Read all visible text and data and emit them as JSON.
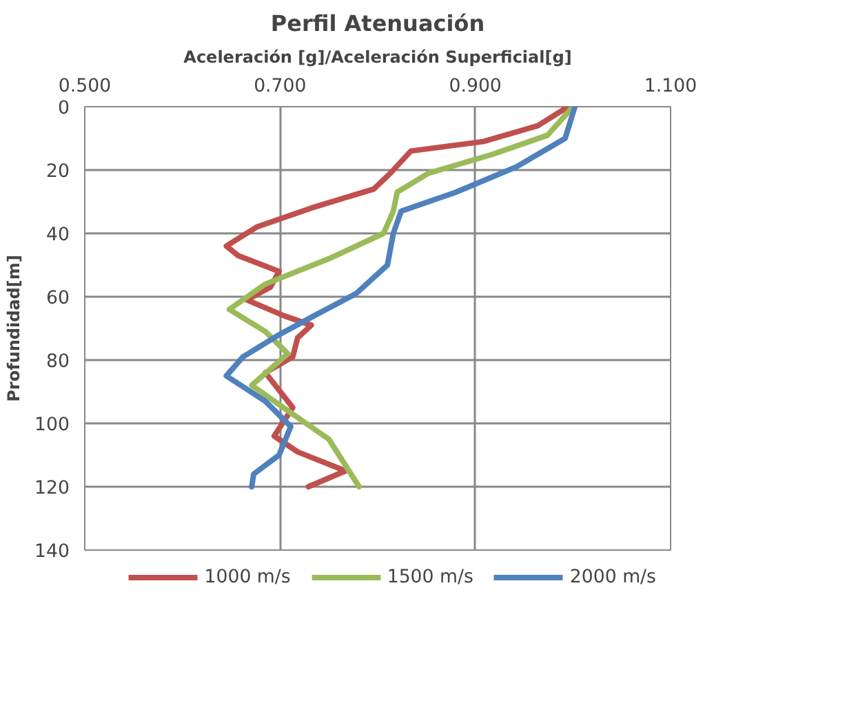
{
  "chart_data": {
    "type": "line",
    "title": "Perfil Atenuación",
    "xlabel": "Aceleración [g]/Aceleración Superficial[g]",
    "ylabel": "Profundidad[m]",
    "xlim": [
      0.5,
      1.1
    ],
    "xticks": [
      {
        "value": 0.5,
        "label": "0.500"
      },
      {
        "value": 0.7,
        "label": "0.700"
      },
      {
        "value": 0.9,
        "label": "0.900"
      },
      {
        "value": 1.1,
        "label": "1.100"
      }
    ],
    "ylim": [
      140,
      0
    ],
    "yticks": [
      0,
      20,
      40,
      60,
      80,
      100,
      120,
      140
    ],
    "grid": true,
    "legend": "bottom",
    "marker": "none",
    "line_style": "solid",
    "series": [
      {
        "name": "1000 m/s",
        "color": "#c0504d",
        "x": [
          0.995,
          0.964,
          0.908,
          0.834,
          0.813,
          0.796,
          0.732,
          0.676,
          0.645,
          0.657,
          0.699,
          0.69,
          0.666,
          0.704,
          0.732,
          0.718,
          0.713,
          0.685,
          0.713,
          0.694,
          0.718,
          0.767,
          0.729
        ],
        "values": [
          0,
          6,
          11,
          14,
          21,
          26,
          32,
          38,
          44,
          47,
          52,
          57,
          61,
          66,
          69,
          73,
          79,
          84,
          95,
          104,
          109,
          115,
          120
        ]
      },
      {
        "name": "1500 m/s",
        "color": "#9bbb59",
        "x": [
          1.0,
          0.974,
          0.918,
          0.852,
          0.82,
          0.816,
          0.806,
          0.75,
          0.685,
          0.648,
          0.685,
          0.708,
          0.671,
          0.708,
          0.75,
          0.781
        ],
        "values": [
          0,
          9,
          15,
          21,
          27,
          33,
          40,
          48,
          56,
          64,
          71,
          78,
          88,
          96,
          105,
          120
        ]
      },
      {
        "name": "2000 m/s",
        "color": "#4f81bd",
        "x": [
          1.002,
          0.992,
          0.942,
          0.88,
          0.824,
          0.816,
          0.81,
          0.778,
          0.735,
          0.699,
          0.662,
          0.645,
          0.685,
          0.711,
          0.699,
          0.673,
          0.671
        ],
        "values": [
          0,
          10,
          19,
          27,
          33,
          40,
          50,
          59,
          66,
          72,
          79,
          85,
          93,
          101,
          110,
          116,
          120
        ]
      }
    ]
  }
}
